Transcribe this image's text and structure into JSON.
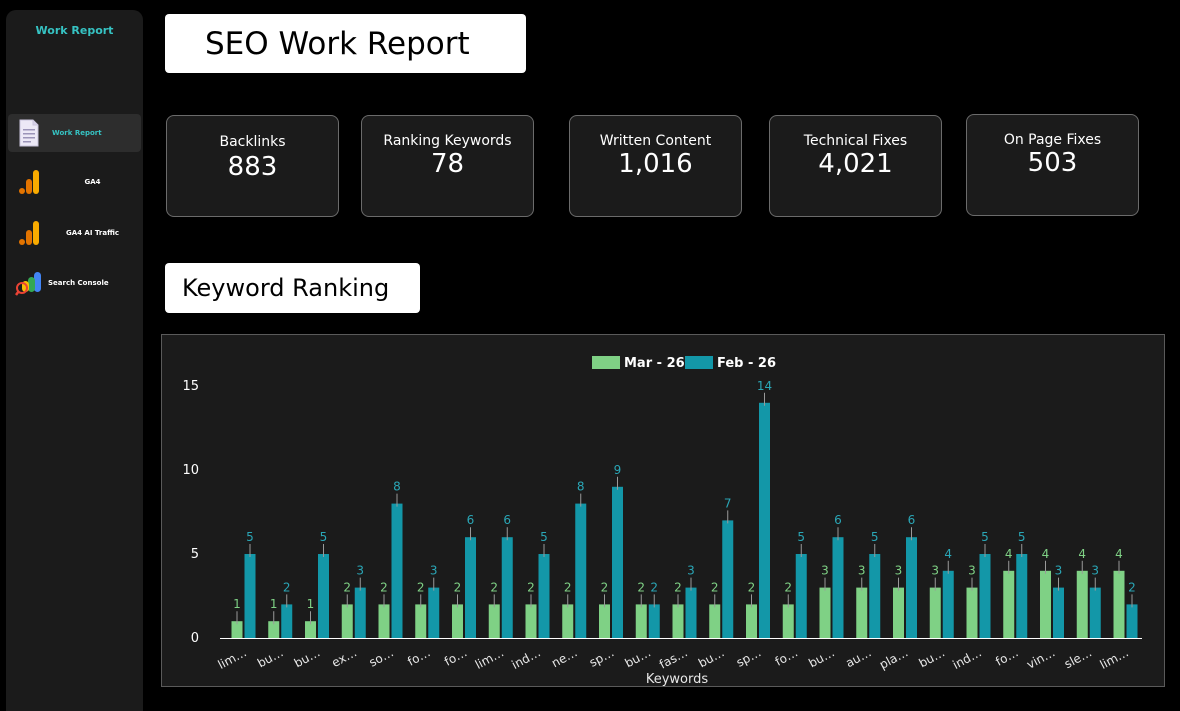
{
  "sidebar": {
    "title": "Work Report",
    "items": [
      {
        "label": "Work Report",
        "icon": "document-icon",
        "active": true
      },
      {
        "label": "GA4",
        "icon": "analytics-icon"
      },
      {
        "label": "GA4 AI Traffic",
        "icon": "analytics-icon"
      },
      {
        "label": "Search Console",
        "icon": "search-console-icon"
      }
    ]
  },
  "header": {
    "title": "SEO Work Report"
  },
  "kpis": [
    {
      "label": "Backlinks",
      "value": "883"
    },
    {
      "label": "Ranking Keywords",
      "value": "78"
    },
    {
      "label": "Written Content",
      "value": "1,016"
    },
    {
      "label": "Technical Fixes",
      "value": "4,021"
    },
    {
      "label": "On Page Fixes",
      "value": "503"
    }
  ],
  "section": {
    "title": "Keyword Ranking"
  },
  "colors": {
    "mar": "#7fd185",
    "feb": "#1397a8",
    "accent": "#36c3c3"
  },
  "chart_data": {
    "type": "bar",
    "title": "",
    "xlabel": "Keywords",
    "ylabel": "",
    "ylim": [
      0,
      15
    ],
    "yticks": [
      0,
      5,
      10,
      15
    ],
    "legend": "top-center",
    "grid": false,
    "categories": [
      "lim…",
      "bu…",
      "bu…",
      "ex…",
      "so…",
      "fo…",
      "fo…",
      "lim…",
      "ind…",
      "ne…",
      "sp…",
      "bu…",
      "fas…",
      "bu…",
      "sp…",
      "fo…",
      "bu…",
      "au…",
      "pla…",
      "bu…",
      "ind…",
      "fo…",
      "vin…",
      "sle…",
      "lim…"
    ],
    "series": [
      {
        "name": "Mar - 26",
        "values": [
          1,
          1,
          1,
          2,
          2,
          2,
          2,
          2,
          2,
          2,
          2,
          2,
          2,
          2,
          2,
          2,
          3,
          3,
          3,
          3,
          3,
          4,
          4,
          4,
          4
        ]
      },
      {
        "name": "Feb - 26",
        "values": [
          5,
          2,
          5,
          3,
          8,
          3,
          6,
          6,
          5,
          8,
          9,
          2,
          3,
          7,
          14,
          5,
          6,
          5,
          6,
          4,
          5,
          5,
          3,
          3,
          2
        ]
      }
    ]
  }
}
